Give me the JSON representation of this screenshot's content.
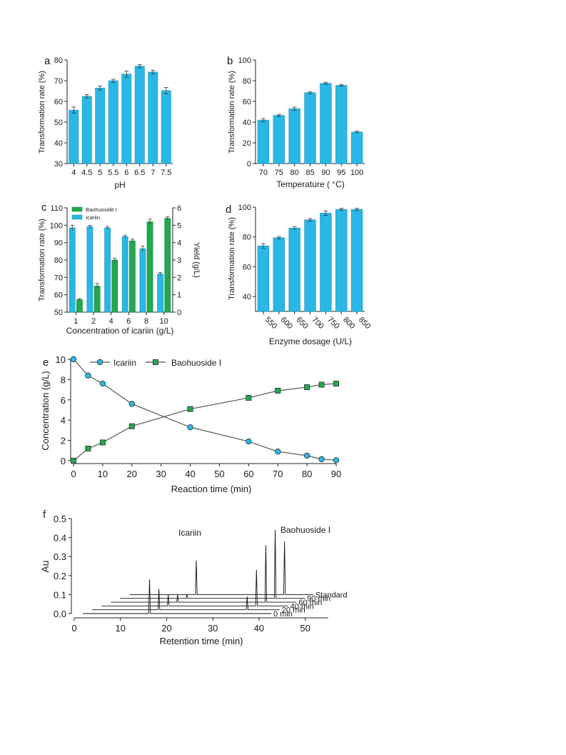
{
  "colors": {
    "bar_blue": "#29b8e6",
    "bar_green": "#22a84e",
    "line": "#555555",
    "marker_blue": "#29b8e6",
    "marker_green": "#22a84e",
    "axis": "#222222"
  },
  "chart_data": [
    {
      "panel": "a",
      "type": "bar",
      "categories": [
        "4",
        "4.5",
        "5",
        "5.5",
        "6",
        "6.5",
        "7",
        "7.5"
      ],
      "values": [
        55.8,
        62.5,
        66.5,
        70.0,
        73.2,
        77.0,
        74.2,
        65.2
      ],
      "errors": [
        1.5,
        0.8,
        1.0,
        0.7,
        1.5,
        0.8,
        0.9,
        1.5
      ],
      "xlabel": "pH",
      "ylabel": "Transformation rate (%)",
      "ylim": [
        30,
        80
      ],
      "yticks": [
        "30",
        "40",
        "50",
        "60",
        "70",
        "80"
      ]
    },
    {
      "panel": "b",
      "type": "bar",
      "categories": [
        "70",
        "75",
        "80",
        "85",
        "90",
        "95",
        "100"
      ],
      "values": [
        42.0,
        46.5,
        53.0,
        68.5,
        77.5,
        75.5,
        30.5
      ],
      "errors": [
        1.5,
        1.0,
        1.5,
        1.0,
        1.0,
        0.8,
        0.8
      ],
      "xlabel": "Temperature ( °C)",
      "ylabel": "Transformation rate (%)",
      "ylim": [
        0,
        100
      ],
      "yticks": [
        "0",
        "20",
        "40",
        "60",
        "80",
        "100"
      ]
    },
    {
      "panel": "c",
      "type": "bar",
      "categories": [
        "1",
        "2",
        "4",
        "6",
        "8",
        "10"
      ],
      "series": [
        {
          "name": "Icariin",
          "axis": "left",
          "values": [
            98.5,
            99.2,
            98.5,
            93.5,
            86.5,
            72.0
          ],
          "errors": [
            1.5,
            0.7,
            0.8,
            0.8,
            1.5,
            0.8
          ]
        },
        {
          "name": "Baohuoside I",
          "axis": "right",
          "values": [
            0.72,
            1.5,
            3.0,
            4.1,
            5.2,
            5.4
          ],
          "errors": [
            0.05,
            0.15,
            0.1,
            0.1,
            0.15,
            0.1
          ]
        }
      ],
      "xlabel": "Concentration of icariin (g/L)",
      "ylabel": "Transformation rate (%)",
      "ylabel_right": "Yield (g/L)",
      "ylim": [
        50,
        110
      ],
      "ylim_right": [
        0,
        6
      ],
      "yticks": [
        "50",
        "60",
        "70",
        "80",
        "90",
        "100",
        "110"
      ],
      "yticks_right": [
        "0",
        "1",
        "2",
        "3",
        "4",
        "5",
        "6"
      ],
      "legend": "top-left"
    },
    {
      "panel": "d",
      "type": "bar",
      "categories": [
        "550",
        "600",
        "650",
        "700",
        "750",
        "800",
        "850"
      ],
      "values": [
        74.0,
        79.5,
        86.0,
        91.5,
        96.0,
        98.5,
        98.5
      ],
      "errors": [
        1.5,
        0.8,
        1.0,
        0.8,
        1.5,
        0.7,
        0.8
      ],
      "xlabel": "Enzyme dosage (U/L)",
      "ylabel": "Transformation rate (%)",
      "ylim": [
        30,
        100
      ],
      "yticks": [
        "40",
        "60",
        "80",
        "100"
      ]
    },
    {
      "panel": "e",
      "type": "line",
      "x": [
        0,
        5,
        10,
        20,
        40,
        60,
        70,
        80,
        85,
        90
      ],
      "series": [
        {
          "name": "Icariin",
          "marker": "circle",
          "values": [
            10.0,
            8.4,
            7.6,
            5.6,
            3.3,
            1.9,
            0.9,
            0.5,
            0.15,
            0.05
          ]
        },
        {
          "name": "Baohuoside I",
          "marker": "square",
          "values": [
            0.0,
            1.2,
            1.8,
            3.4,
            5.1,
            6.2,
            6.9,
            7.25,
            7.5,
            7.6
          ]
        }
      ],
      "xlabel": "Reaction time (min)",
      "ylabel": "Concentration (g/L)",
      "xlim": [
        0,
        90
      ],
      "ylim": [
        0,
        10
      ],
      "xticks": [
        "0",
        "10",
        "20",
        "30",
        "40",
        "50",
        "60",
        "70",
        "80",
        "90"
      ],
      "yticks": [
        "0",
        "2",
        "4",
        "6",
        "8",
        "10"
      ],
      "legend": "top"
    },
    {
      "panel": "f",
      "type": "line",
      "xlabel": "Retention time (min)",
      "ylabel": "Au",
      "xlim": [
        0,
        55
      ],
      "ylim": [
        0,
        0.5
      ],
      "xticks": [
        "0",
        "10",
        "20",
        "30",
        "40",
        "50"
      ],
      "yticks": [
        "0.0",
        "0.1",
        "0.2",
        "0.3",
        "0.4",
        "0.5"
      ],
      "peak_labels": [
        "Icariin",
        "Baohuoside I"
      ],
      "traces": [
        {
          "name": "0 min",
          "peaks": [
            {
              "rt": 16.3,
              "h": 0.18
            }
          ]
        },
        {
          "name": "20 min",
          "peaks": [
            {
              "rt": 16.3,
              "h": 0.11
            },
            {
              "rt": 35.4,
              "h": 0.07
            }
          ]
        },
        {
          "name": "40 min",
          "peaks": [
            {
              "rt": 16.3,
              "h": 0.06
            },
            {
              "rt": 35.4,
              "h": 0.19
            }
          ]
        },
        {
          "name": "60 min",
          "peaks": [
            {
              "rt": 16.3,
              "h": 0.04
            },
            {
              "rt": 35.4,
              "h": 0.3
            }
          ]
        },
        {
          "name": "90 min",
          "peaks": [
            {
              "rt": 16.3,
              "h": 0.02
            },
            {
              "rt": 35.4,
              "h": 0.36
            }
          ]
        },
        {
          "name": "Standard",
          "peaks": [
            {
              "rt": 16.3,
              "h": 0.18
            },
            {
              "rt": 35.4,
              "h": 0.28
            }
          ]
        }
      ]
    }
  ]
}
